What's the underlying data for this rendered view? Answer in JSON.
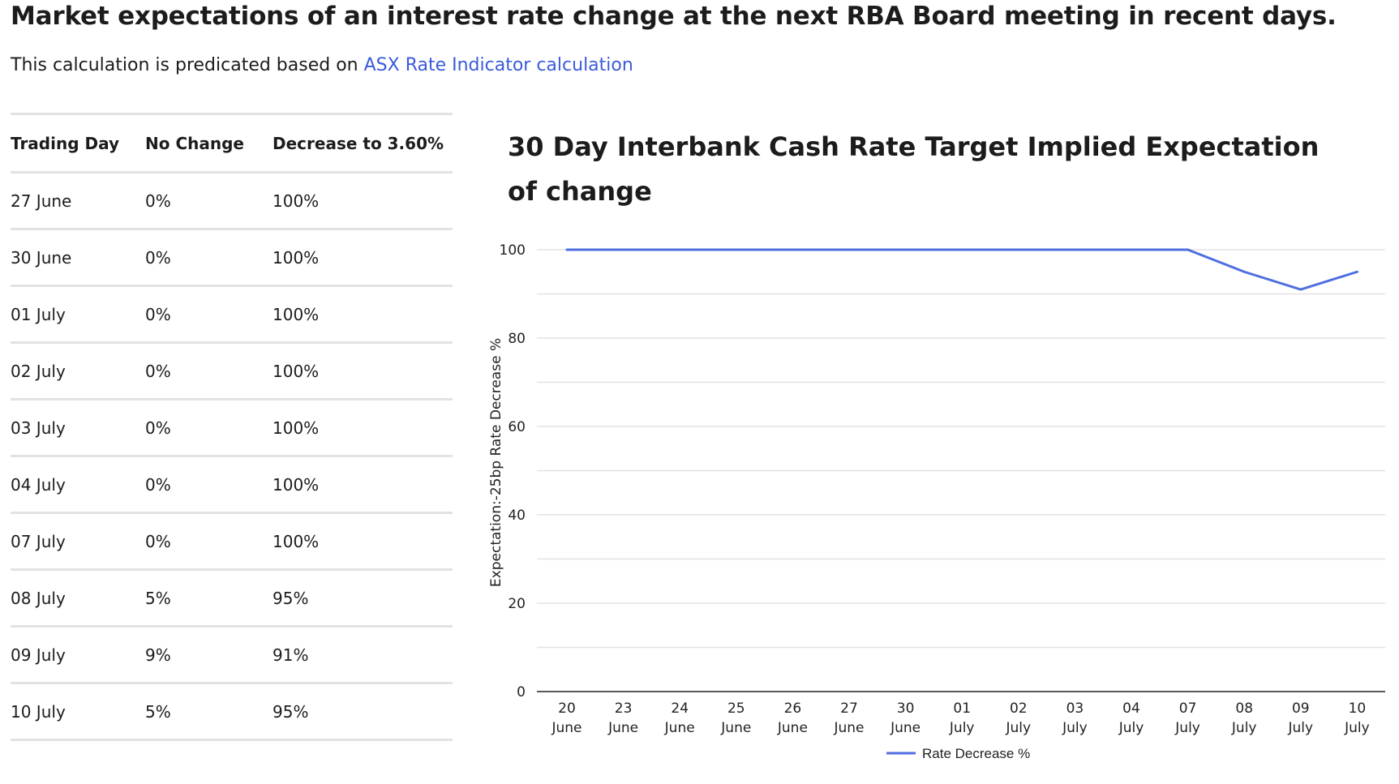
{
  "page": {
    "title": "Market expectations of an interest rate change at the next RBA Board meeting in recent days.",
    "subtitle_prefix": "This calculation is predicated based on ",
    "subtitle_link": "ASX Rate Indicator calculation"
  },
  "table": {
    "headers": [
      "Trading Day",
      "No Change",
      "Decrease to 3.60%"
    ],
    "rows": [
      [
        "27 June",
        "0%",
        "100%"
      ],
      [
        "30 June",
        "0%",
        "100%"
      ],
      [
        "01 July",
        "0%",
        "100%"
      ],
      [
        "02 July",
        "0%",
        "100%"
      ],
      [
        "03 July",
        "0%",
        "100%"
      ],
      [
        "04 July",
        "0%",
        "100%"
      ],
      [
        "07 July",
        "0%",
        "100%"
      ],
      [
        "08 July",
        "5%",
        "95%"
      ],
      [
        "09 July",
        "9%",
        "91%"
      ],
      [
        "10 July",
        "5%",
        "95%"
      ]
    ]
  },
  "colors": {
    "line": "#4f6fe0",
    "link": "#3b5bdb",
    "grid": "#e3e3e3",
    "axis": "#222222"
  },
  "chart_data": {
    "type": "line",
    "title": "30 Day Interbank Cash Rate Target Implied Expectation of change",
    "ylabel": "Expectation:-25bp Rate Decrease %",
    "xlabel": "",
    "categories": [
      [
        "20",
        "June"
      ],
      [
        "23",
        "June"
      ],
      [
        "24",
        "June"
      ],
      [
        "25",
        "June"
      ],
      [
        "26",
        "June"
      ],
      [
        "27",
        "June"
      ],
      [
        "30",
        "June"
      ],
      [
        "01",
        "July"
      ],
      [
        "02",
        "July"
      ],
      [
        "03",
        "July"
      ],
      [
        "04",
        "July"
      ],
      [
        "07",
        "July"
      ],
      [
        "08",
        "July"
      ],
      [
        "09",
        "July"
      ],
      [
        "10",
        "July"
      ]
    ],
    "series": [
      {
        "name": "Rate Decrease %",
        "values": [
          100,
          100,
          100,
          100,
          100,
          100,
          100,
          100,
          100,
          100,
          100,
          100,
          95,
          91,
          95
        ]
      }
    ],
    "ylim": [
      0,
      100
    ],
    "yticks": [
      0,
      20,
      40,
      60,
      80,
      100
    ],
    "grid_step": 10,
    "grid": true,
    "legend": "bottom-center"
  }
}
